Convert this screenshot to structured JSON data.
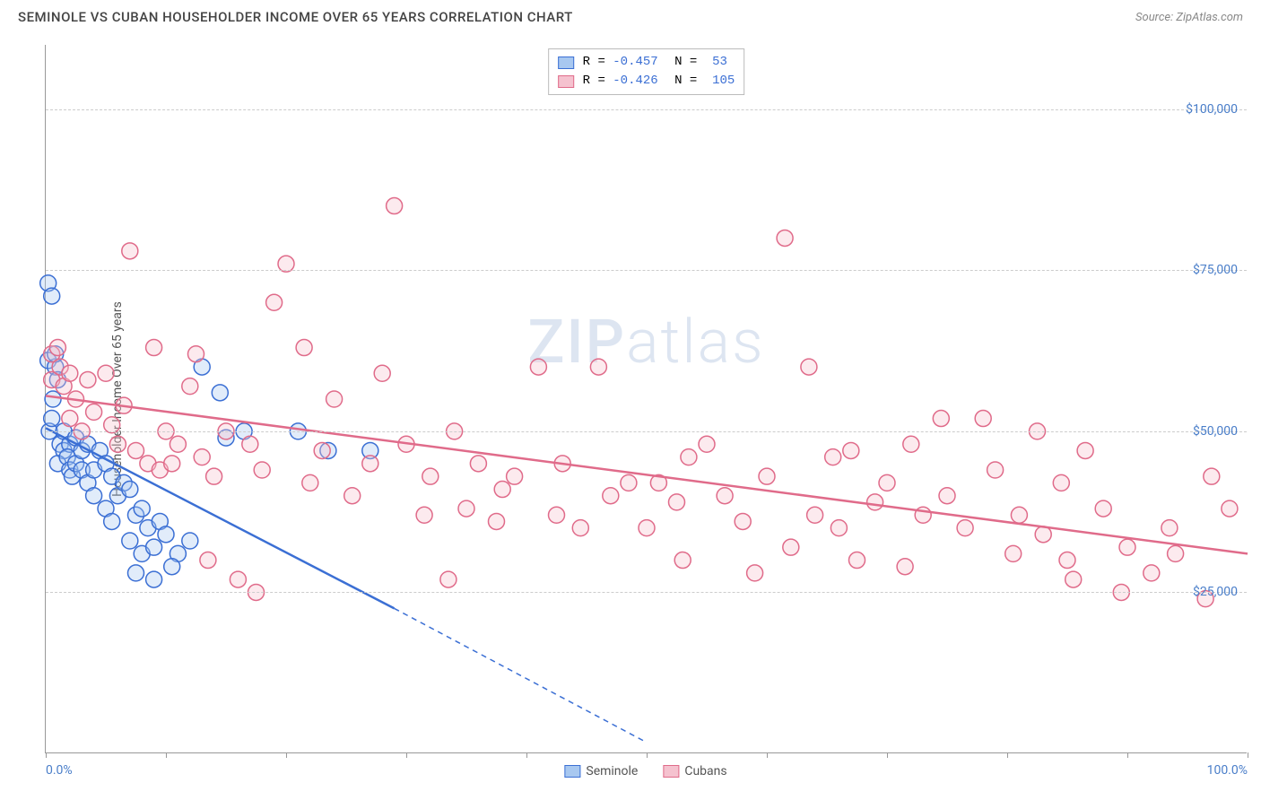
{
  "title": "SEMINOLE VS CUBAN HOUSEHOLDER INCOME OVER 65 YEARS CORRELATION CHART",
  "source": "Source: ZipAtlas.com",
  "watermark": "ZIPatlas",
  "chart": {
    "type": "scatter-correlation",
    "y_axis_title": "Householder Income Over 65 years",
    "xlim": [
      0,
      100
    ],
    "ylim": [
      0,
      110000
    ],
    "x_ticks": [
      0,
      10,
      20,
      30,
      40,
      50,
      60,
      70,
      80,
      90,
      100
    ],
    "y_ticks": [
      25000,
      50000,
      75000,
      100000
    ],
    "y_tick_labels": [
      "$25,000",
      "$50,000",
      "$75,000",
      "$100,000"
    ],
    "x_tick_labels": {
      "0": "0.0%",
      "100": "100.0%"
    },
    "background_color": "#ffffff",
    "grid_color": "#cccccc",
    "axis_color": "#999999",
    "tick_label_color": "#4a7ec9",
    "marker_radius": 9,
    "marker_fill_opacity": 0.35,
    "marker_stroke_width": 1.5,
    "trend_line_width": 2.5,
    "series": [
      {
        "name": "Seminole",
        "color_fill": "#a8c8f0",
        "color_stroke": "#3b6fd4",
        "R": "-0.457",
        "N": "53",
        "trend": {
          "x1": 0,
          "y1": 50500,
          "x2": 29,
          "y2": 22500,
          "extend_x2": 50,
          "extend_y2": 1700
        },
        "points": [
          [
            0.2,
            73000
          ],
          [
            0.2,
            61000
          ],
          [
            0.5,
            71000
          ],
          [
            0.8,
            60000
          ],
          [
            0.8,
            62000
          ],
          [
            0.6,
            55000
          ],
          [
            0.3,
            50000
          ],
          [
            0.5,
            52000
          ],
          [
            1.0,
            58000
          ],
          [
            1.2,
            48000
          ],
          [
            1.5,
            47000
          ],
          [
            1.0,
            45000
          ],
          [
            1.5,
            50000
          ],
          [
            2.0,
            48000
          ],
          [
            1.8,
            46000
          ],
          [
            2.0,
            44000
          ],
          [
            2.5,
            49000
          ],
          [
            2.2,
            43000
          ],
          [
            2.5,
            45000
          ],
          [
            3.0,
            47000
          ],
          [
            3.5,
            48000
          ],
          [
            3.0,
            44000
          ],
          [
            3.5,
            42000
          ],
          [
            4.0,
            44000
          ],
          [
            4.5,
            47000
          ],
          [
            4.0,
            40000
          ],
          [
            5.0,
            45000
          ],
          [
            5.5,
            43000
          ],
          [
            5.0,
            38000
          ],
          [
            6.0,
            40000
          ],
          [
            5.5,
            36000
          ],
          [
            6.5,
            42000
          ],
          [
            7.0,
            41000
          ],
          [
            7.5,
            37000
          ],
          [
            8.0,
            38000
          ],
          [
            7.0,
            33000
          ],
          [
            8.5,
            35000
          ],
          [
            8.0,
            31000
          ],
          [
            9.0,
            32000
          ],
          [
            9.5,
            36000
          ],
          [
            10.0,
            34000
          ],
          [
            11.0,
            31000
          ],
          [
            10.5,
            29000
          ],
          [
            12.0,
            33000
          ],
          [
            7.5,
            28000
          ],
          [
            9.0,
            27000
          ],
          [
            13.0,
            60000
          ],
          [
            15.0,
            49000
          ],
          [
            16.5,
            50000
          ],
          [
            14.5,
            56000
          ],
          [
            21.0,
            50000
          ],
          [
            23.5,
            47000
          ],
          [
            27.0,
            47000
          ]
        ]
      },
      {
        "name": "Cubans",
        "color_fill": "#f5c2cf",
        "color_stroke": "#e06b8a",
        "R": "-0.426",
        "N": "105",
        "trend": {
          "x1": 0,
          "y1": 55500,
          "x2": 100,
          "y2": 31000
        },
        "points": [
          [
            0.5,
            62000
          ],
          [
            1.0,
            63000
          ],
          [
            0.5,
            58000
          ],
          [
            1.2,
            60000
          ],
          [
            1.5,
            57000
          ],
          [
            2.0,
            59000
          ],
          [
            2.5,
            55000
          ],
          [
            2.0,
            52000
          ],
          [
            3.5,
            58000
          ],
          [
            3.0,
            50000
          ],
          [
            4.0,
            53000
          ],
          [
            5.0,
            59000
          ],
          [
            5.5,
            51000
          ],
          [
            6.0,
            48000
          ],
          [
            6.5,
            54000
          ],
          [
            7.0,
            78000
          ],
          [
            8.5,
            45000
          ],
          [
            7.5,
            47000
          ],
          [
            9.0,
            63000
          ],
          [
            9.5,
            44000
          ],
          [
            10.0,
            50000
          ],
          [
            10.5,
            45000
          ],
          [
            11.0,
            48000
          ],
          [
            12.0,
            57000
          ],
          [
            13.0,
            46000
          ],
          [
            12.5,
            62000
          ],
          [
            14.0,
            43000
          ],
          [
            15.0,
            50000
          ],
          [
            13.5,
            30000
          ],
          [
            16.0,
            27000
          ],
          [
            17.5,
            25000
          ],
          [
            17.0,
            48000
          ],
          [
            18.0,
            44000
          ],
          [
            19.0,
            70000
          ],
          [
            20.0,
            76000
          ],
          [
            21.5,
            63000
          ],
          [
            22.0,
            42000
          ],
          [
            23.0,
            47000
          ],
          [
            24.0,
            55000
          ],
          [
            25.5,
            40000
          ],
          [
            27.0,
            45000
          ],
          [
            28.0,
            59000
          ],
          [
            29.0,
            85000
          ],
          [
            30.0,
            48000
          ],
          [
            31.5,
            37000
          ],
          [
            32.0,
            43000
          ],
          [
            33.5,
            27000
          ],
          [
            34.0,
            50000
          ],
          [
            35.0,
            38000
          ],
          [
            36.0,
            45000
          ],
          [
            37.5,
            36000
          ],
          [
            38.0,
            41000
          ],
          [
            39.0,
            43000
          ],
          [
            41.0,
            60000
          ],
          [
            42.5,
            37000
          ],
          [
            43.0,
            45000
          ],
          [
            44.5,
            35000
          ],
          [
            46.0,
            60000
          ],
          [
            47.0,
            40000
          ],
          [
            48.5,
            42000
          ],
          [
            50.0,
            35000
          ],
          [
            51.0,
            42000
          ],
          [
            52.5,
            39000
          ],
          [
            53.0,
            30000
          ],
          [
            55.0,
            48000
          ],
          [
            56.5,
            40000
          ],
          [
            58.0,
            36000
          ],
          [
            59.0,
            28000
          ],
          [
            60.0,
            43000
          ],
          [
            61.5,
            80000
          ],
          [
            62.0,
            32000
          ],
          [
            63.5,
            60000
          ],
          [
            64.0,
            37000
          ],
          [
            65.5,
            46000
          ],
          [
            66.0,
            35000
          ],
          [
            67.5,
            30000
          ],
          [
            69.0,
            39000
          ],
          [
            70.0,
            42000
          ],
          [
            71.5,
            29000
          ],
          [
            72.0,
            48000
          ],
          [
            73.0,
            37000
          ],
          [
            74.5,
            52000
          ],
          [
            75.0,
            40000
          ],
          [
            76.5,
            35000
          ],
          [
            78.0,
            52000
          ],
          [
            79.0,
            44000
          ],
          [
            80.5,
            31000
          ],
          [
            81.0,
            37000
          ],
          [
            82.5,
            50000
          ],
          [
            83.0,
            34000
          ],
          [
            84.5,
            42000
          ],
          [
            85.0,
            30000
          ],
          [
            86.5,
            47000
          ],
          [
            88.0,
            38000
          ],
          [
            89.5,
            25000
          ],
          [
            90.0,
            32000
          ],
          [
            92.0,
            28000
          ],
          [
            93.5,
            35000
          ],
          [
            94.0,
            31000
          ],
          [
            96.5,
            24000
          ],
          [
            97.0,
            43000
          ],
          [
            98.5,
            38000
          ],
          [
            85.5,
            27000
          ],
          [
            67.0,
            47000
          ],
          [
            53.5,
            46000
          ]
        ]
      }
    ],
    "bottom_legend": [
      "Seminole",
      "Cubans"
    ]
  }
}
